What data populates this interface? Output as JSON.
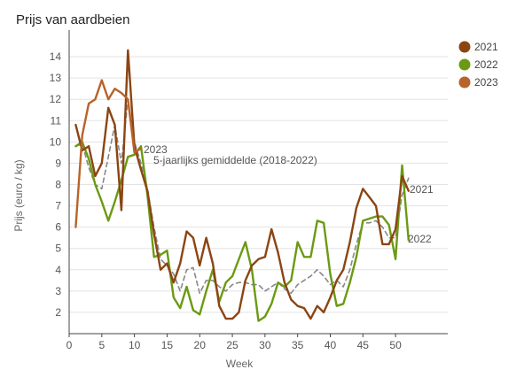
{
  "chart_data": {
    "type": "line",
    "title": "Prijs van aardbeien",
    "xlabel": "Week",
    "ylabel": "Prijs (euro / kg)",
    "xlim": [
      0,
      58
    ],
    "ylim": [
      1,
      15
    ],
    "xticks": [
      0,
      5,
      10,
      15,
      20,
      25,
      30,
      35,
      40,
      45,
      50
    ],
    "yticks": [
      2,
      3,
      4,
      5,
      6,
      7,
      8,
      9,
      10,
      11,
      12,
      13,
      14
    ],
    "grid": "horizontal",
    "legend_position": "top-right",
    "series": [
      {
        "name": "2021",
        "color": "#8B4513",
        "dash": "",
        "x": [
          1,
          2,
          3,
          4,
          5,
          6,
          7,
          8,
          9,
          10,
          11,
          12,
          13,
          14,
          15,
          16,
          17,
          18,
          19,
          20,
          21,
          22,
          23,
          24,
          25,
          26,
          27,
          28,
          29,
          30,
          31,
          32,
          33,
          34,
          35,
          36,
          37,
          38,
          39,
          40,
          41,
          42,
          43,
          44,
          45,
          46,
          47,
          48,
          49,
          50,
          51,
          52
        ],
        "y": [
          10.8,
          9.6,
          9.8,
          8.4,
          9.0,
          11.6,
          10.8,
          6.8,
          14.3,
          9.8,
          8.7,
          7.7,
          5.7,
          4.0,
          4.3,
          3.4,
          4.3,
          5.8,
          5.5,
          4.2,
          5.5,
          4.3,
          2.3,
          1.7,
          1.7,
          2.0,
          3.5,
          4.2,
          4.5,
          4.6,
          5.9,
          4.8,
          3.4,
          2.6,
          2.3,
          2.2,
          1.7,
          2.3,
          2.0,
          2.7,
          3.5,
          4.0,
          5.3,
          6.9,
          7.8,
          7.4,
          7.0,
          5.2,
          5.2,
          5.9,
          8.4,
          7.7
        ]
      },
      {
        "name": "2022",
        "color": "#6B9A12",
        "dash": "",
        "x": [
          1,
          2,
          3,
          4,
          5,
          6,
          7,
          8,
          9,
          10,
          11,
          12,
          13,
          14,
          15,
          16,
          17,
          18,
          19,
          20,
          21,
          22,
          23,
          24,
          25,
          26,
          27,
          28,
          29,
          30,
          31,
          32,
          33,
          34,
          35,
          36,
          37,
          38,
          39,
          40,
          41,
          42,
          43,
          44,
          45,
          46,
          47,
          48,
          49,
          50,
          51,
          52
        ],
        "y": [
          9.8,
          10.0,
          9.2,
          8.0,
          7.2,
          6.3,
          7.2,
          8.2,
          9.3,
          9.4,
          9.8,
          7.5,
          4.6,
          4.7,
          4.9,
          2.7,
          2.2,
          3.2,
          2.1,
          1.9,
          3.0,
          4.0,
          2.5,
          3.4,
          3.7,
          4.5,
          5.3,
          4.0,
          1.6,
          1.8,
          2.4,
          3.4,
          3.2,
          3.5,
          5.3,
          4.6,
          4.6,
          6.3,
          6.2,
          3.8,
          2.3,
          2.4,
          3.4,
          4.6,
          6.3,
          6.4,
          6.5,
          6.5,
          6.1,
          4.5,
          8.9,
          5.4
        ]
      },
      {
        "name": "2023",
        "color": "#B8632A",
        "dash": "",
        "x": [
          1,
          2,
          3,
          4,
          5,
          6,
          7,
          8,
          9,
          10,
          11
        ],
        "y": [
          6.0,
          10.3,
          11.8,
          12.0,
          12.9,
          12.0,
          12.5,
          12.3,
          12.0,
          9.5,
          9.7
        ]
      },
      {
        "name": "5-jaarlijks gemiddelde (2018-2022)",
        "color": "#888888",
        "dash": "5,4",
        "x": [
          1,
          2,
          3,
          4,
          5,
          6,
          7,
          8,
          9,
          10,
          11,
          12,
          13,
          14,
          15,
          16,
          17,
          18,
          19,
          20,
          21,
          22,
          23,
          24,
          25,
          26,
          27,
          28,
          29,
          30,
          31,
          32,
          33,
          34,
          35,
          36,
          37,
          38,
          39,
          40,
          41,
          42,
          43,
          44,
          45,
          46,
          47,
          48,
          49,
          50,
          51,
          52
        ],
        "y": [
          9.8,
          9.9,
          8.8,
          8.0,
          7.8,
          9.3,
          10.8,
          9.0,
          12.0,
          10.0,
          9.0,
          7.8,
          6.0,
          4.5,
          4.2,
          3.8,
          3.0,
          4.0,
          4.1,
          2.9,
          3.5,
          3.5,
          3.2,
          3.0,
          3.3,
          3.4,
          3.4,
          3.3,
          3.3,
          3.0,
          3.2,
          3.4,
          3.1,
          2.9,
          3.3,
          3.5,
          3.7,
          4.0,
          3.7,
          3.3,
          3.5,
          3.2,
          4.0,
          5.2,
          6.2,
          6.2,
          6.3,
          6.0,
          5.5,
          5.5,
          7.5,
          8.3
        ]
      }
    ],
    "annotations": [
      {
        "text": "2023",
        "series": "2023"
      },
      {
        "text": "5-jaarlijks gemiddelde (2018-2022)",
        "series": "5-jaarlijks gemiddelde (2018-2022)"
      },
      {
        "text": "2021",
        "series": "2021"
      },
      {
        "text": "2022",
        "series": "2022"
      }
    ],
    "legend": [
      {
        "label": "2021",
        "color": "#8B4513"
      },
      {
        "label": "2022",
        "color": "#6B9A12"
      },
      {
        "label": "2023",
        "color": "#B8632A"
      }
    ]
  }
}
